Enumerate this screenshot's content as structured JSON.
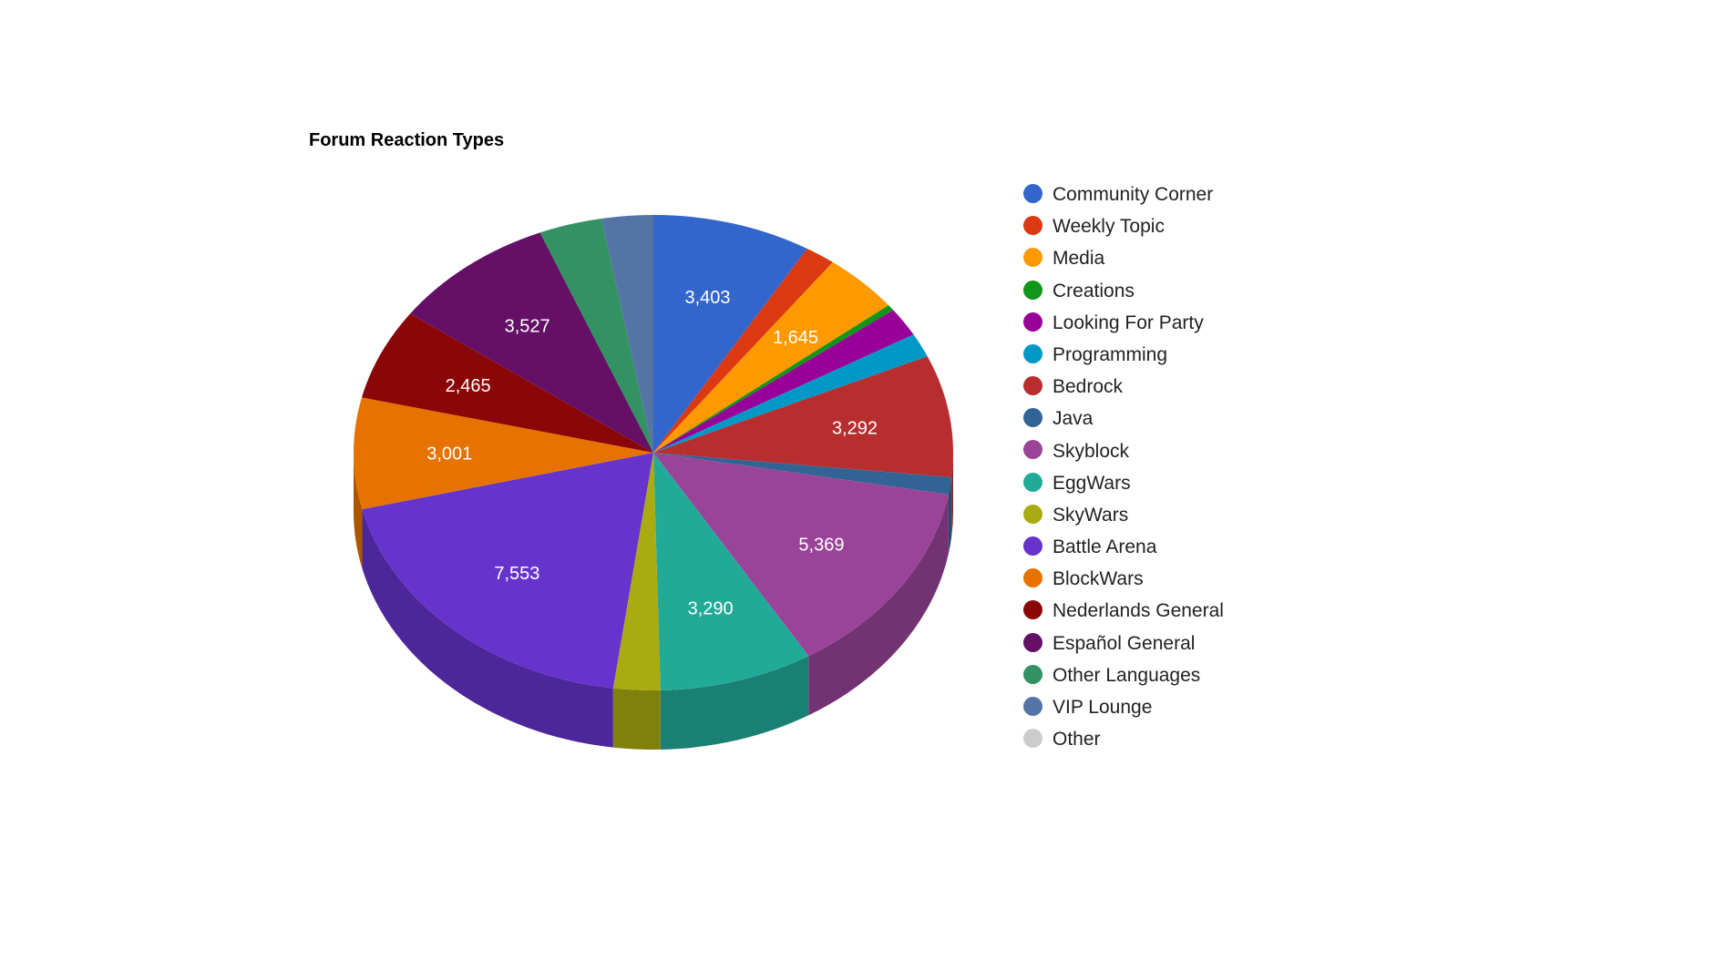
{
  "chart_data": {
    "type": "pie",
    "title": "Forum Reaction Types",
    "legend_position": "right",
    "is_3d": true,
    "slices": [
      {
        "label": "Community Corner",
        "value": 3403,
        "color": "#3366cc",
        "value_label": "3,403"
      },
      {
        "label": "Weekly Topic",
        "value": 650,
        "color": "#dc3912",
        "value_label": ""
      },
      {
        "label": "Media",
        "value": 1645,
        "color": "#ff9900",
        "value_label": "1,645"
      },
      {
        "label": "Creations",
        "value": 160,
        "color": "#109618",
        "value_label": ""
      },
      {
        "label": "Looking For Party",
        "value": 780,
        "color": "#990099",
        "value_label": ""
      },
      {
        "label": "Programming",
        "value": 650,
        "color": "#0099c6",
        "value_label": ""
      },
      {
        "label": "Bedrock",
        "value": 3292,
        "color": "#b82e2e",
        "value_label": "3,292"
      },
      {
        "label": "Java",
        "value": 460,
        "color": "#316395",
        "value_label": ""
      },
      {
        "label": "Skyblock",
        "value": 5369,
        "color": "#994499",
        "value_label": "5,369"
      },
      {
        "label": "EggWars",
        "value": 3290,
        "color": "#22aa99",
        "value_label": "3,290"
      },
      {
        "label": "SkyWars",
        "value": 1000,
        "color": "#aaaa11",
        "value_label": ""
      },
      {
        "label": "Battle Arena",
        "value": 7553,
        "color": "#6633cc",
        "value_label": "7,553"
      },
      {
        "label": "BlockWars",
        "value": 3001,
        "color": "#e67300",
        "value_label": "3,001"
      },
      {
        "label": "Nederlands General",
        "value": 2465,
        "color": "#8b0707",
        "value_label": "2,465"
      },
      {
        "label": "Español General",
        "value": 3527,
        "color": "#651067",
        "value_label": "3,527"
      },
      {
        "label": "Other Languages",
        "value": 1350,
        "color": "#329262",
        "value_label": ""
      },
      {
        "label": "VIP Lounge",
        "value": 1100,
        "color": "#5574a6",
        "value_label": ""
      },
      {
        "label": "Other",
        "value": 0,
        "color": "#cccccc",
        "value_label": ""
      }
    ]
  }
}
